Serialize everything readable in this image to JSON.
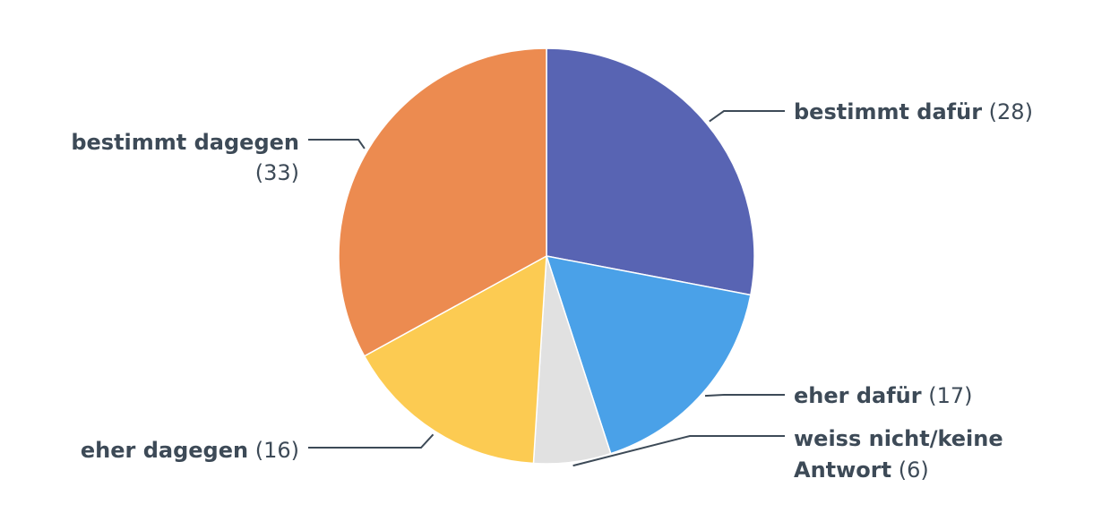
{
  "chart_data": {
    "type": "pie",
    "title": "",
    "slices": [
      {
        "label": "bestimmt dafür",
        "value": 28,
        "count_label": "(28)",
        "color": "#5864b3"
      },
      {
        "label": "eher dafür",
        "value": 17,
        "count_label": "(17)",
        "color": "#4aa1e8"
      },
      {
        "label": "weiss nicht/keine Antwort",
        "label_lines": [
          "weiss nicht/keine",
          "Antwort"
        ],
        "value": 6,
        "count_label": "(6)",
        "color": "#e1e1e1"
      },
      {
        "label": "eher dagegen",
        "value": 16,
        "count_label": "(16)",
        "color": "#fccb52"
      },
      {
        "label": "bestimmt dagegen",
        "label_lines": [
          "bestimmt dagegen",
          ""
        ],
        "value": 33,
        "count_label": "(33)",
        "color": "#ec8b50"
      }
    ]
  }
}
